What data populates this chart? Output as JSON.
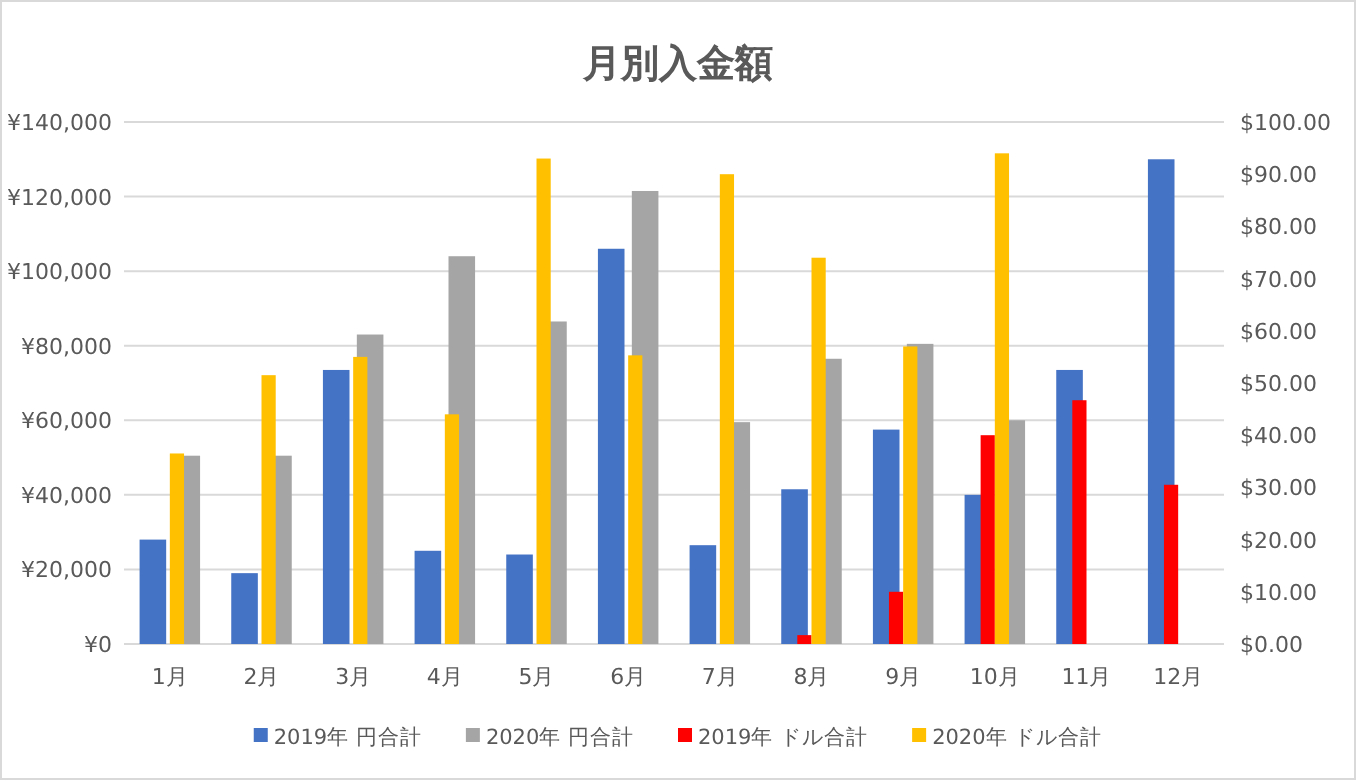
{
  "chart_data": {
    "type": "bar",
    "title": "月別入金額",
    "categories": [
      "1月",
      "2月",
      "3月",
      "4月",
      "5月",
      "6月",
      "7月",
      "8月",
      "9月",
      "10月",
      "11月",
      "12月"
    ],
    "series": [
      {
        "name": "2019年 円合計",
        "color": "#4472c4",
        "values": [
          28000,
          19000,
          73500,
          25000,
          24000,
          106000,
          26500,
          41500,
          57500,
          40000,
          73500,
          130000
        ]
      },
      {
        "name": "2020年 円合計",
        "color": "#a5a5a5",
        "values": [
          50500,
          50500,
          83000,
          104000,
          86500,
          121500,
          59500,
          76500,
          80500,
          60000,
          null,
          null
        ]
      },
      {
        "name": "2019年 ドル合計",
        "color": "#ff0000",
        "axis": "y2",
        "values": [
          null,
          null,
          null,
          null,
          null,
          null,
          null,
          1.7,
          10,
          40,
          46.7,
          30.5
        ]
      },
      {
        "name": "2020年 ドル合計",
        "color": "#ffc000",
        "axis": "y2",
        "values": [
          36.5,
          51.5,
          55,
          44,
          93,
          55.3,
          90,
          74,
          57,
          94,
          null,
          null
        ]
      }
    ],
    "ylim": [
      0,
      140000
    ],
    "yticks": [
      {
        "value": 0,
        "label": "¥0"
      },
      {
        "value": 20000,
        "label": "¥20,000"
      },
      {
        "value": 40000,
        "label": "¥40,000"
      },
      {
        "value": 60000,
        "label": "¥60,000"
      },
      {
        "value": 80000,
        "label": "¥80,000"
      },
      {
        "value": 100000,
        "label": "¥100,000"
      },
      {
        "value": 120000,
        "label": "¥120,000"
      },
      {
        "value": 140000,
        "label": "¥140,000"
      }
    ],
    "y2lim": [
      0,
      100
    ],
    "y2ticks": [
      {
        "value": 0,
        "label": "$0.00"
      },
      {
        "value": 10,
        "label": "$10.00"
      },
      {
        "value": 20,
        "label": "$20.00"
      },
      {
        "value": 30,
        "label": "$30.00"
      },
      {
        "value": 40,
        "label": "$40.00"
      },
      {
        "value": 50,
        "label": "$50.00"
      },
      {
        "value": 60,
        "label": "$60.00"
      },
      {
        "value": 70,
        "label": "$70.00"
      },
      {
        "value": 80,
        "label": "$80.00"
      },
      {
        "value": 90,
        "label": "$90.00"
      },
      {
        "value": 100,
        "label": "$100.00"
      }
    ],
    "grid": "y",
    "legend": "bottom"
  }
}
